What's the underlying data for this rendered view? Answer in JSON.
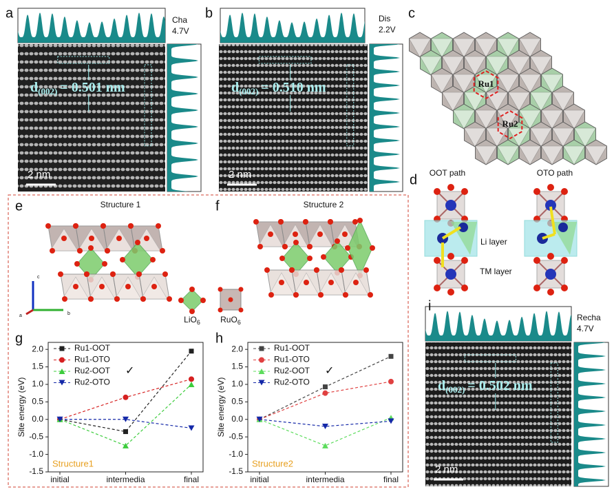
{
  "panels": {
    "a": {
      "label": "a",
      "tag": [
        "Cha",
        "4.7V"
      ],
      "spacing": {
        "d": "d",
        "sub": "(002)",
        "rest": "= 0.501 nm"
      },
      "scale_bar": "2 nm"
    },
    "b": {
      "label": "b",
      "tag": [
        "Dis",
        "2.2V"
      ],
      "spacing": {
        "d": "d",
        "sub": "(002)",
        "rest": "= 0.510 nm"
      },
      "scale_bar": "2 nm"
    },
    "c": {
      "label": "c",
      "sites": [
        "Ru1",
        "Ru2"
      ]
    },
    "d": {
      "label": "d",
      "paths": [
        "OOT path",
        "OTO path"
      ],
      "layers": [
        "Li layer",
        "TM layer"
      ]
    },
    "e": {
      "label": "e",
      "title": "Structure 1",
      "axes": [
        "c",
        "b",
        "a"
      ],
      "units": [
        {
          "name": "LiO",
          "sub": "6"
        },
        {
          "name": "RuO",
          "sub": "6"
        }
      ]
    },
    "f": {
      "label": "f",
      "title": "Structure 2"
    },
    "g": {
      "label": "g"
    },
    "h": {
      "label": "h"
    },
    "i": {
      "label": "i",
      "tag": [
        "Recha",
        "4.7V"
      ],
      "spacing": {
        "d": "d",
        "sub": "(002)",
        "rest": "= 0.502 nm"
      },
      "scale_bar": "2 nm"
    }
  },
  "chart_data": [
    {
      "type": "line",
      "categories": [
        "initial",
        "intermedia",
        "final"
      ],
      "ylabel": "Site energy (eV)",
      "ylim": [
        -1.5,
        2.2
      ],
      "yticks": [
        -1.5,
        {
          "value": -1,
          "label": "-1.0"
        },
        -0.5,
        {
          "value": 0,
          "label": "0.0"
        },
        0.5,
        {
          "value": 1,
          "label": "1.0"
        },
        1.5,
        {
          "value": 2,
          "label": "2.0"
        }
      ],
      "annotation": "Structure1",
      "check_mark": "✓",
      "series": [
        {
          "name": "Ru1-OOT",
          "color": "#222222",
          "marker": "square",
          "values": [
            0,
            -0.35,
            1.95
          ]
        },
        {
          "name": "Ru1-OTO",
          "color": "#d62020",
          "marker": "circle",
          "values": [
            0,
            0.63,
            1.15
          ]
        },
        {
          "name": "Ru2-OOT",
          "color": "#3ccc3c",
          "marker": "triangle-up",
          "values": [
            0,
            -0.75,
            1.0
          ]
        },
        {
          "name": "Ru2-OTO",
          "color": "#1428a8",
          "marker": "triangle-down",
          "values": [
            0,
            0,
            -0.25
          ]
        }
      ]
    },
    {
      "type": "line",
      "categories": [
        "initial",
        "intermedia",
        "final"
      ],
      "ylabel": "Site energy (eV)",
      "ylim": [
        -1.5,
        2.2
      ],
      "yticks": [
        -1.5,
        {
          "value": -1,
          "label": "-1.0"
        },
        -0.5,
        {
          "value": 0,
          "label": "0.0"
        },
        0.5,
        {
          "value": 1,
          "label": "1.0"
        },
        1.5,
        {
          "value": 2,
          "label": "2.0"
        }
      ],
      "annotation": "Structure2",
      "check_mark": "✓",
      "series": [
        {
          "name": "Ru1-OOT",
          "color": "#444444",
          "marker": "square",
          "values": [
            0,
            0.93,
            1.8
          ]
        },
        {
          "name": "Ru1-OTO",
          "color": "#e04040",
          "marker": "circle",
          "values": [
            0,
            0.75,
            1.08
          ]
        },
        {
          "name": "Ru2-OOT",
          "color": "#5cdc5c",
          "marker": "triangle-up",
          "values": [
            0,
            -0.75,
            0.05
          ]
        },
        {
          "name": "Ru2-OTO",
          "color": "#1428a8",
          "marker": "triangle-down",
          "values": [
            0,
            -0.2,
            -0.05
          ]
        }
      ]
    }
  ]
}
